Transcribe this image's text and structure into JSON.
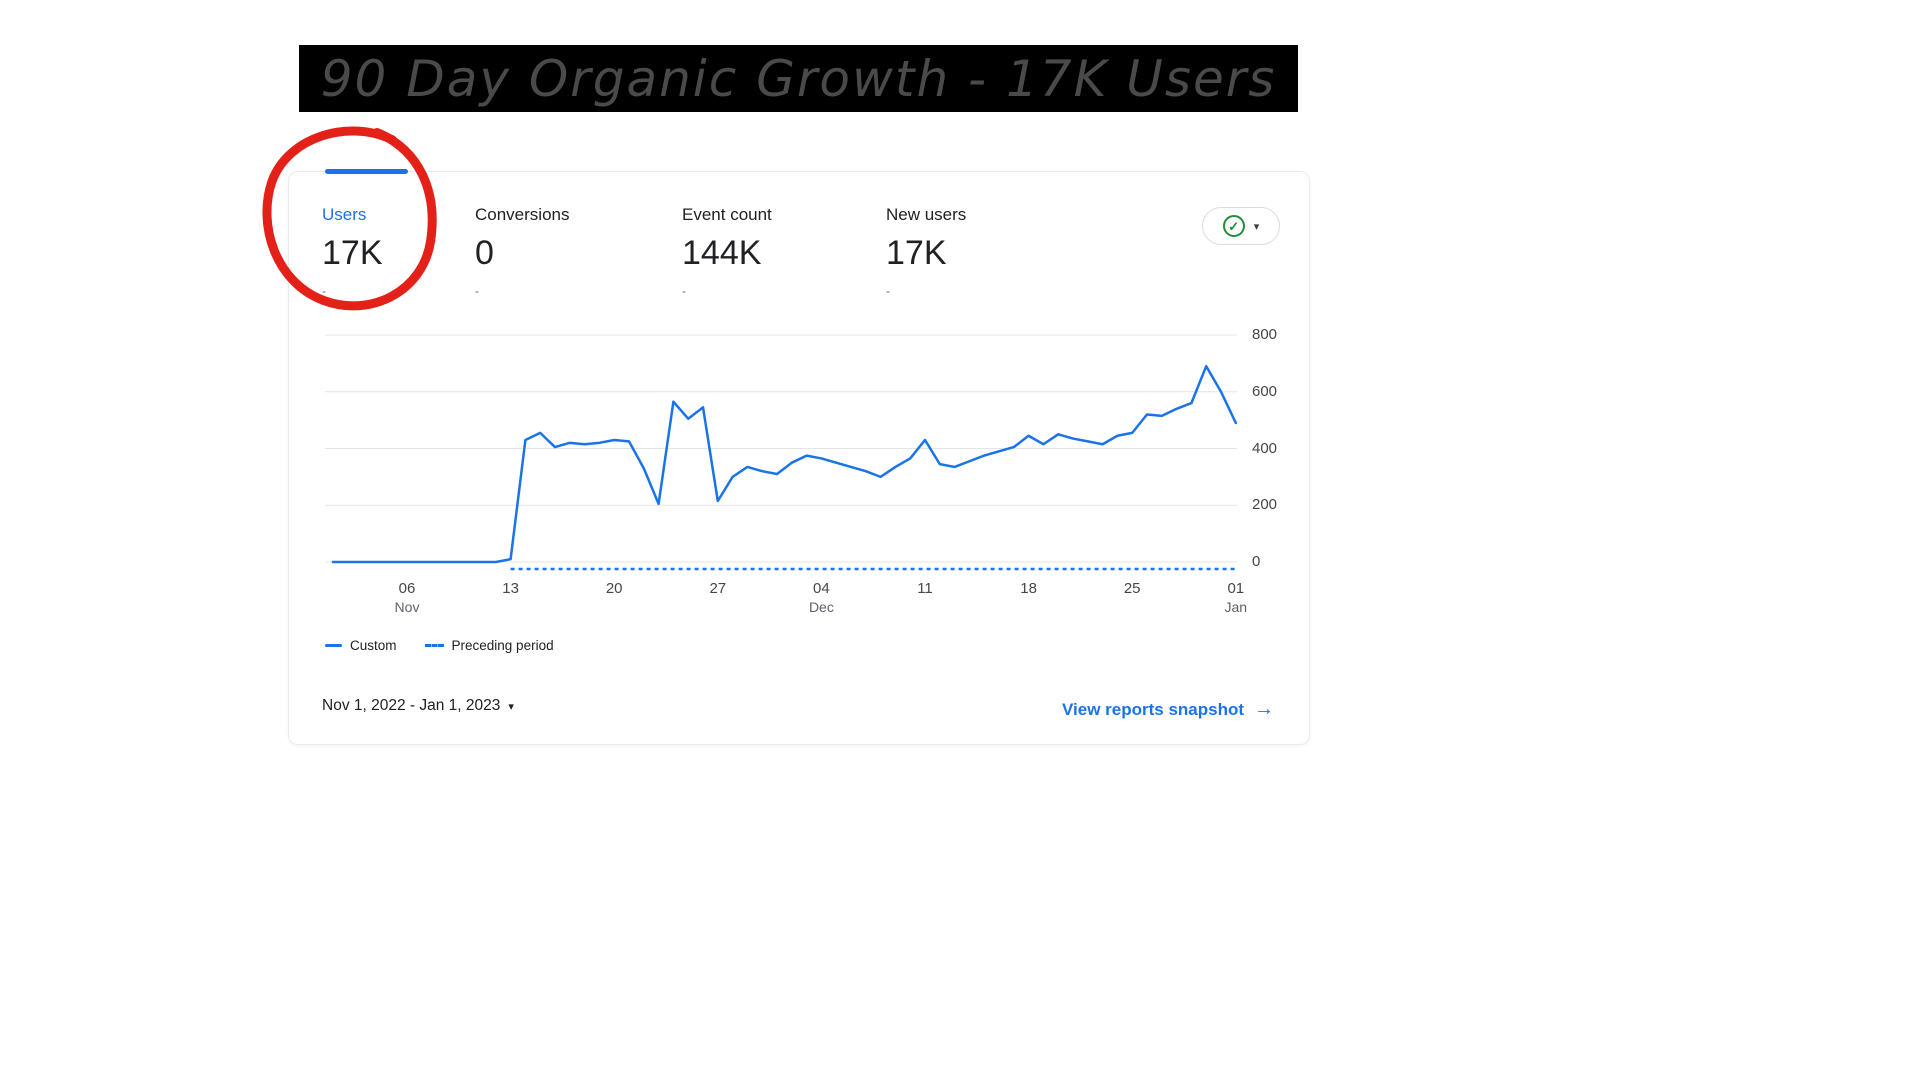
{
  "banner": {
    "title": "90 Day Organic Growth - 17K Users"
  },
  "metrics": [
    {
      "label": "Users",
      "value": "17K",
      "sub": "-"
    },
    {
      "label": "Conversions",
      "value": "0",
      "sub": "-"
    },
    {
      "label": "Event count",
      "value": "144K",
      "sub": "-"
    },
    {
      "label": "New users",
      "value": "17K",
      "sub": "-"
    }
  ],
  "icons": {
    "check": "✓",
    "caret_down": "▾",
    "arrow_right": "→"
  },
  "colors": {
    "accent": "#1a73e8",
    "line": "#1a73e8",
    "check_green": "#1e8e3e",
    "annotation_red": "#e32119"
  },
  "footer": {
    "date_range": "Nov 1, 2022 - Jan 1, 2023",
    "view_reports_label": "View reports snapshot"
  },
  "chart_data": {
    "type": "line",
    "title": "",
    "xlabel": "",
    "ylabel": "",
    "ylim": [
      0,
      800
    ],
    "y_ticks": [
      0,
      200,
      400,
      600,
      800
    ],
    "grid": "horizontal",
    "legend_position": "bottom-left",
    "x_ticks": [
      {
        "label": "06",
        "month": "Nov",
        "day_index": 5
      },
      {
        "label": "13",
        "day_index": 12
      },
      {
        "label": "20",
        "day_index": 19
      },
      {
        "label": "27",
        "day_index": 26
      },
      {
        "label": "04",
        "month": "Dec",
        "day_index": 33
      },
      {
        "label": "11",
        "day_index": 40
      },
      {
        "label": "18",
        "day_index": 47
      },
      {
        "label": "25",
        "day_index": 54
      },
      {
        "label": "01",
        "month": "Jan",
        "day_index": 61
      }
    ],
    "series": [
      {
        "name": "Custom",
        "style": "solid",
        "values": [
          0,
          0,
          0,
          0,
          0,
          0,
          0,
          0,
          0,
          0,
          0,
          0,
          10,
          430,
          455,
          405,
          420,
          415,
          420,
          430,
          425,
          330,
          205,
          565,
          505,
          545,
          215,
          300,
          335,
          320,
          310,
          350,
          375,
          365,
          350,
          335,
          320,
          300,
          335,
          365,
          430,
          345,
          335,
          355,
          375,
          390,
          405,
          445,
          415,
          450,
          435,
          425,
          415,
          445,
          455,
          520,
          515,
          540,
          560,
          690,
          600,
          490
        ]
      },
      {
        "name": "Preceding period",
        "style": "dashed",
        "value": 0,
        "start_index": 12,
        "end_index": 61
      }
    ]
  }
}
